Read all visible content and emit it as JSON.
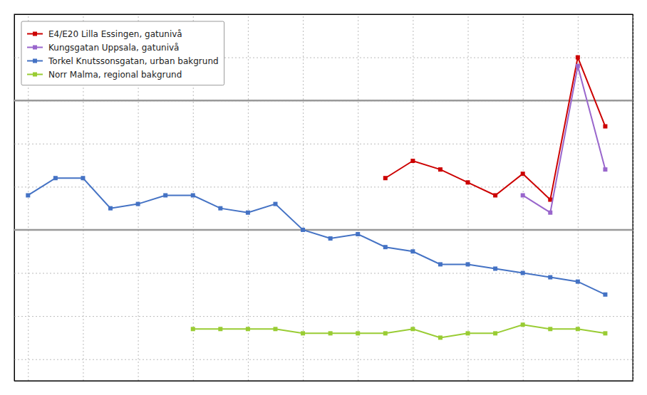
{
  "chart_data": {
    "type": "line",
    "x": [
      1990,
      1991,
      1992,
      1993,
      1994,
      1995,
      1996,
      1997,
      1998,
      1999,
      2000,
      2001,
      2002,
      2003,
      2004,
      2005,
      2006,
      2007,
      2008,
      2009,
      2010,
      2011
    ],
    "series": [
      {
        "name": "E4/E20 Lilla Essingen, gatunivå",
        "color": "#cc0000",
        "values": [
          null,
          null,
          null,
          null,
          null,
          null,
          null,
          null,
          null,
          null,
          null,
          null,
          null,
          42,
          46,
          44,
          41,
          38,
          43,
          37,
          70,
          54
        ]
      },
      {
        "name": "Kungsgatan Uppsala, gatunivå",
        "color": "#9966cc",
        "values": [
          null,
          null,
          null,
          null,
          null,
          null,
          null,
          null,
          null,
          null,
          null,
          null,
          null,
          null,
          null,
          null,
          null,
          null,
          38,
          34,
          68,
          44
        ]
      },
      {
        "name": "Torkel Knutssonsgatan, urban bakgrund",
        "color": "#4472c4",
        "values": [
          38,
          42,
          42,
          35,
          36,
          38,
          38,
          35,
          34,
          36,
          30,
          28,
          29,
          26,
          25,
          22,
          22,
          21,
          20,
          19,
          18,
          15
        ]
      },
      {
        "name": "Norr Malma, regional bakgrund",
        "color": "#99cc33",
        "values": [
          null,
          null,
          null,
          null,
          null,
          null,
          7,
          7,
          7,
          7,
          6,
          6,
          6,
          6,
          7,
          5,
          6,
          6,
          8,
          7,
          7,
          6
        ]
      }
    ],
    "reference_lines": [
      60,
      30
    ],
    "xlim": [
      1989.5,
      2012.0
    ],
    "ylim": [
      -5,
      80
    ],
    "xticks": [
      1990,
      1992,
      1994,
      1996,
      1998,
      2000,
      2002,
      2004,
      2006,
      2008,
      2010,
      2012
    ],
    "yticks": [
      0,
      10,
      20,
      30,
      40,
      50,
      60,
      70
    ],
    "grid": true,
    "tick_labels": false,
    "marker": "square",
    "legend": "upper left"
  }
}
